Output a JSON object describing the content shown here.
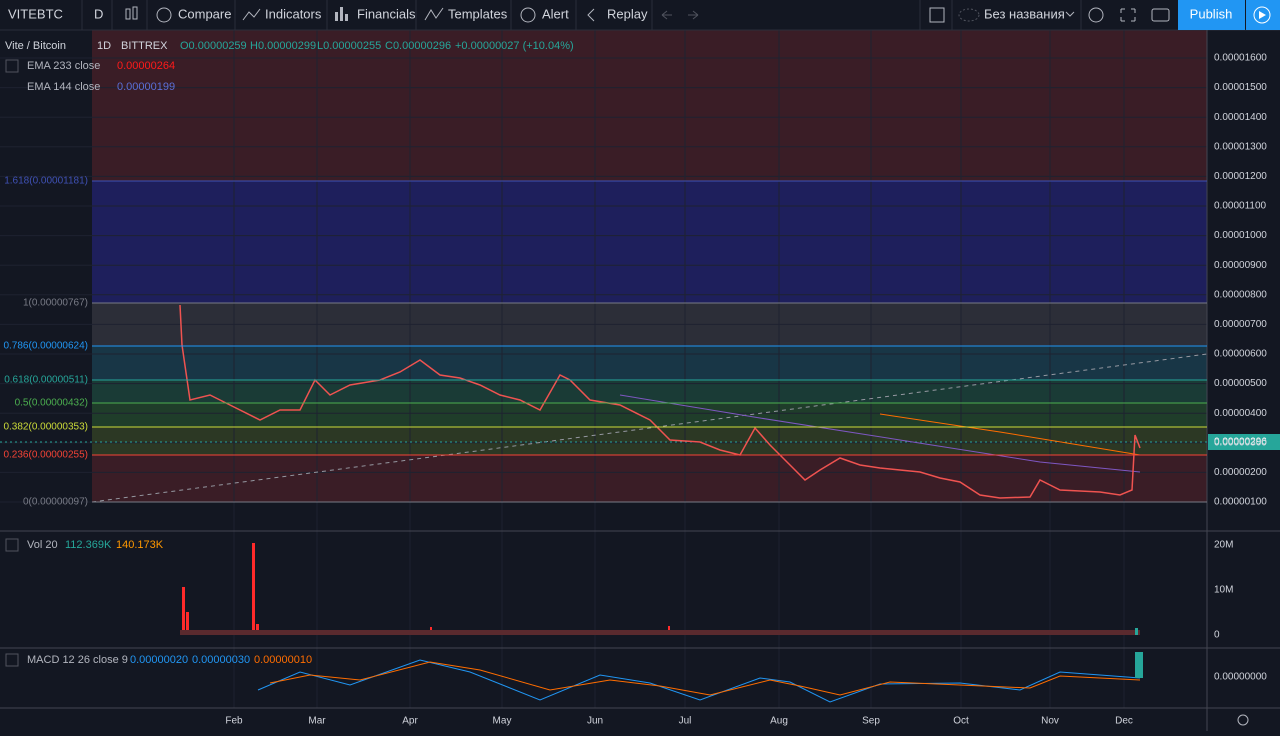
{
  "toolbar": {
    "symbol": "VITEBTC",
    "interval": "D",
    "buttons": [
      "Compare",
      "Indicators",
      "Financials",
      "Templates",
      "Alert",
      "Replay"
    ],
    "layout_name": "Без названия",
    "publish": "Publish"
  },
  "legend": {
    "title": "Vite / Bitcoin",
    "interval": "1D",
    "exchange": "BITTREX",
    "ohlc": [
      "O0.00000259",
      "H0.00000299",
      "L0.00000255",
      "C0.00000296",
      "+0.00000027 (+10.04%)"
    ]
  },
  "indicators": [
    {
      "name": "EMA 233 close",
      "value": "0.00000264"
    },
    {
      "name": "EMA 144 close",
      "value": "0.00000199"
    }
  ],
  "fib_levels": [
    "1.618(0.00001181)",
    "1(0.00000767)",
    "0.786(0.00000624)",
    "0.618(0.00000511)",
    "0.5(0.00000432)",
    "0.382(0.00000353)",
    "0.236(0.00000255)",
    "0(0.00000097)"
  ],
  "price_axis": [
    "0.00001600",
    "0.00001500",
    "0.00001400",
    "0.00001300",
    "0.00001200",
    "0.00001100",
    "0.00001000",
    "0.00000900",
    "0.00000800",
    "0.00000700",
    "0.00000600",
    "0.00000500",
    "0.00000400",
    "0.00000300",
    "0.00000200",
    "0.00000100"
  ],
  "current_price": "0.00000296",
  "volume": {
    "name": "Vol 20",
    "values": [
      "112.369K",
      "140.173K"
    ],
    "axis": [
      "20M",
      "10M",
      "0"
    ]
  },
  "macd": {
    "name": "MACD 12 26 close 9",
    "values": [
      "0.00000020",
      "0.00000030",
      "0.00000010"
    ],
    "axis": [
      "0.00000000"
    ]
  },
  "time_axis": [
    "Feb",
    "Mar",
    "Apr",
    "May",
    "Jun",
    "Jul",
    "Aug",
    "Sep",
    "Oct",
    "Nov",
    "Dec"
  ]
}
